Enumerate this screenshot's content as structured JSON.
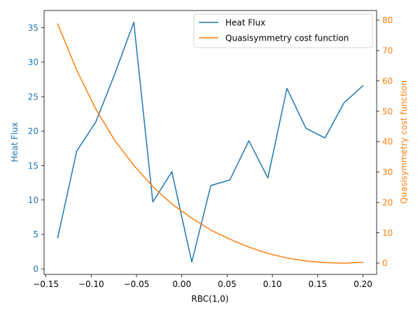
{
  "chart_data": {
    "type": "line",
    "xlabel": "RBC(1,0)",
    "ylabel_left": "Heat Flux",
    "ylabel_right": "Quasisymmetry cost function",
    "xlim": [
      -0.152,
      0.215
    ],
    "ylim_left": [
      -0.8,
      37.5
    ],
    "ylim_right": [
      -3.7,
      83.2
    ],
    "x_ticks": [
      -0.15,
      -0.1,
      -0.05,
      0.0,
      0.05,
      0.1,
      0.15,
      0.2
    ],
    "x_tick_labels": [
      "−0.15",
      "−0.10",
      "−0.05",
      "0.00",
      "0.05",
      "0.10",
      "0.15",
      "0.20"
    ],
    "y_left_ticks": [
      0,
      5,
      10,
      15,
      20,
      25,
      30,
      35
    ],
    "y_left_tick_labels": [
      "0",
      "5",
      "10",
      "15",
      "20",
      "25",
      "30",
      "35"
    ],
    "y_right_ticks": [
      0,
      10,
      20,
      30,
      40,
      50,
      60,
      70,
      80
    ],
    "y_right_tick_labels": [
      "0",
      "10",
      "20",
      "30",
      "40",
      "50",
      "60",
      "70",
      "80"
    ],
    "grid": false,
    "legend_position": "top-right",
    "series": [
      {
        "name": "Heat Flux",
        "axis": "left",
        "color": "#1f77b4",
        "x": [
          -0.137,
          -0.116,
          -0.095,
          -0.074,
          -0.053,
          -0.032,
          -0.011,
          0.011,
          0.032,
          0.053,
          0.074,
          0.095,
          0.116,
          0.137,
          0.158,
          0.179,
          0.2
        ],
        "y": [
          4.5,
          17.1,
          21.3,
          28.3,
          35.8,
          9.7,
          14.1,
          1.0,
          12.1,
          12.9,
          18.6,
          13.2,
          26.2,
          20.4,
          19.0,
          24.1,
          26.6
        ]
      },
      {
        "name": "Quasisymmetry cost function",
        "axis": "right",
        "color": "#ff7f0e",
        "x": [
          -0.137,
          -0.116,
          -0.095,
          -0.074,
          -0.053,
          -0.032,
          -0.011,
          0.011,
          0.032,
          0.053,
          0.074,
          0.095,
          0.116,
          0.137,
          0.158,
          0.179,
          0.2
        ],
        "y": [
          78.8,
          63.5,
          50.8,
          40.4,
          32.2,
          25.2,
          19.5,
          14.8,
          10.9,
          7.9,
          5.3,
          3.2,
          1.7,
          0.7,
          0.2,
          0.0,
          0.3
        ]
      }
    ]
  }
}
